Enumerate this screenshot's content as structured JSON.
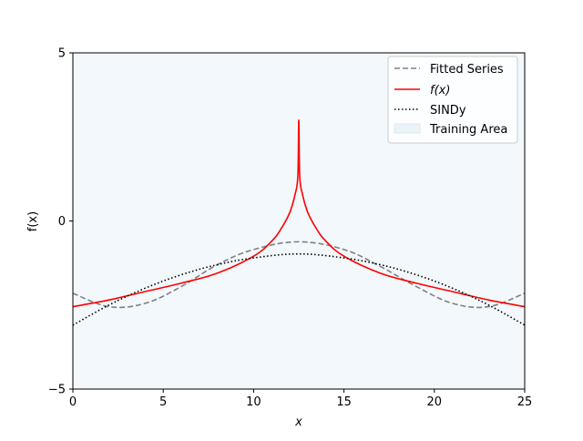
{
  "chart_data": {
    "type": "line",
    "title": "",
    "xlabel": "x",
    "ylabel": "f(x)",
    "xlim": [
      0,
      25
    ],
    "ylim": [
      -5,
      5
    ],
    "x_ticks": [
      0,
      5,
      10,
      15,
      20,
      25
    ],
    "y_ticks": [
      -5,
      0,
      5
    ],
    "x_tick_labels": [
      "0",
      "5",
      "10",
      "15",
      "20",
      "25"
    ],
    "y_tick_labels": [
      "−5",
      "0",
      "5"
    ],
    "grid": false,
    "legend_position": "top-right",
    "shaded_region": {
      "name": "Training Area",
      "x_range": [
        0,
        25
      ],
      "color": "#eaf3f8"
    },
    "series": [
      {
        "name": "Fitted Series",
        "style": "dashed",
        "color": "#808080",
        "x": [
          0,
          2,
          4,
          6,
          8,
          10,
          12.5,
          15,
          17,
          19,
          21,
          23,
          25
        ],
        "y": [
          -2.15,
          -2.55,
          -2.45,
          -1.95,
          -1.3,
          -0.85,
          -0.62,
          -0.85,
          -1.35,
          -1.95,
          -2.45,
          -2.55,
          -2.15
        ]
      },
      {
        "name": "f(x)",
        "style": "solid",
        "color": "#ff0000",
        "x": [
          0,
          2,
          4,
          6,
          8,
          10,
          11,
          11.5,
          12,
          12.3,
          12.45,
          12.5,
          12.55,
          12.7,
          13,
          13.5,
          14,
          15,
          17,
          19,
          21,
          23,
          25
        ],
        "y": [
          -2.55,
          -2.35,
          -2.1,
          -1.85,
          -1.55,
          -1.05,
          -0.6,
          -0.25,
          0.25,
          0.8,
          1.35,
          3.0,
          1.35,
          0.8,
          0.25,
          -0.25,
          -0.6,
          -1.05,
          -1.55,
          -1.85,
          -2.1,
          -2.35,
          -2.55
        ]
      },
      {
        "name": "SINDy",
        "style": "dotted",
        "color": "#000000",
        "x": [
          0,
          2,
          4,
          6,
          8,
          10,
          12.5,
          15,
          17,
          19,
          21,
          23,
          25
        ],
        "y": [
          -3.1,
          -2.5,
          -2.0,
          -1.6,
          -1.3,
          -1.1,
          -0.98,
          -1.1,
          -1.3,
          -1.6,
          -2.0,
          -2.5,
          -3.1
        ]
      }
    ]
  }
}
